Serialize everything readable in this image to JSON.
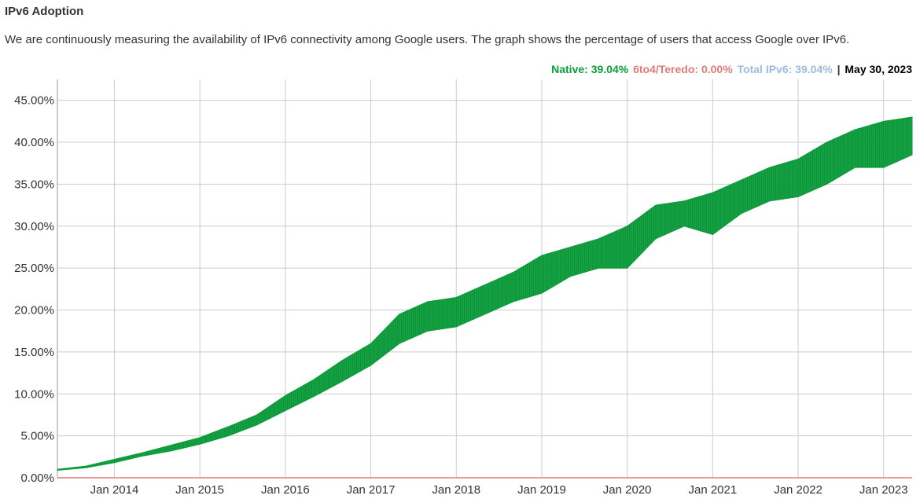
{
  "header": {
    "title": "IPv6 Adoption",
    "description": "We are continuously measuring the availability of IPv6 connectivity among Google users. The graph shows the percentage of users that access Google over IPv6."
  },
  "legend": {
    "native": "Native: 39.04%",
    "teredo": "6to4/Teredo: 0.00%",
    "total": "Total IPv6: 39.04%",
    "separator": "|",
    "date": "May 30, 2023"
  },
  "colors": {
    "native": "#0a9d3a",
    "teredo": "#e07b7b",
    "total": "#9dbbe0",
    "grid": "#cccccc"
  },
  "chart_data": {
    "type": "area",
    "title": "",
    "xlabel": "",
    "ylabel": "",
    "ylim": [
      0,
      47.5
    ],
    "y_ticks": [
      "0.00%",
      "5.00%",
      "10.00%",
      "15.00%",
      "20.00%",
      "25.00%",
      "30.00%",
      "35.00%",
      "40.00%",
      "45.00%"
    ],
    "x_ticks": [
      "Jan 2014",
      "Jan 2015",
      "Jan 2016",
      "Jan 2017",
      "Jan 2018",
      "Jan 2019",
      "Jan 2020",
      "Jan 2021",
      "Jan 2022",
      "Jan 2023"
    ],
    "x_range": [
      "2013-05",
      "2023-05"
    ],
    "grid": true,
    "legend_position": "top-right",
    "series": [
      {
        "name": "Native",
        "x": [
          "2013-05",
          "2013-09",
          "2014-01",
          "2014-05",
          "2014-09",
          "2015-01",
          "2015-05",
          "2015-09",
          "2016-01",
          "2016-05",
          "2016-09",
          "2017-01",
          "2017-05",
          "2017-09",
          "2018-01",
          "2018-05",
          "2018-09",
          "2019-01",
          "2019-05",
          "2019-09",
          "2020-01",
          "2020-05",
          "2020-09",
          "2021-01",
          "2021-05",
          "2021-09",
          "2022-01",
          "2022-05",
          "2022-09",
          "2023-01",
          "2023-05"
        ],
        "low": [
          0.9,
          1.2,
          1.8,
          2.6,
          3.2,
          4.0,
          5.0,
          6.3,
          8.0,
          9.7,
          11.5,
          13.4,
          16.0,
          17.5,
          18.0,
          19.5,
          21.0,
          22.0,
          24.0,
          25.0,
          25.0,
          28.5,
          30.0,
          29.0,
          31.5,
          33.0,
          33.5,
          35.0,
          37.0,
          37.0,
          38.5
        ],
        "high": [
          1.0,
          1.4,
          2.2,
          3.0,
          3.9,
          4.8,
          6.1,
          7.5,
          9.8,
          11.7,
          14.0,
          16.0,
          19.5,
          21.0,
          21.5,
          23.0,
          24.5,
          26.5,
          27.5,
          28.5,
          30.0,
          32.5,
          33.0,
          34.0,
          35.5,
          37.0,
          38.0,
          40.0,
          41.5,
          42.5,
          43.0
        ]
      },
      {
        "name": "6to4/Teredo",
        "values_pct": 0.0
      }
    ]
  }
}
